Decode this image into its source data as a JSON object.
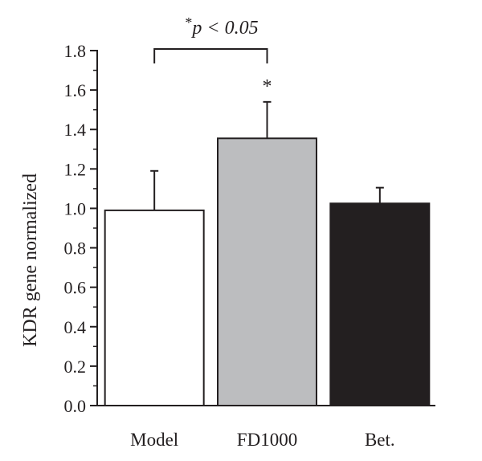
{
  "chart_data": {
    "type": "bar",
    "ylabel": "KDR gene normalized",
    "ylim": [
      0,
      1.8
    ],
    "y_ticks": [
      "0.0",
      "0.2",
      "0.4",
      "0.6",
      "0.8",
      "1.0",
      "1.2",
      "1.4",
      "1.6",
      "1.8"
    ],
    "categories": [
      "Model",
      "FD1000",
      "Bet."
    ],
    "values": [
      0.99,
      1.355,
      1.025
    ],
    "errors": [
      0.2,
      0.185,
      0.08
    ],
    "bar_colors": [
      "#ffffff",
      "#bcbdbf",
      "#231f20"
    ],
    "significance": {
      "from": "Model",
      "to": "FD1000",
      "star": "*",
      "text": "p < 0.05",
      "bar_marker": "*"
    },
    "grid": false,
    "legend": "none"
  }
}
